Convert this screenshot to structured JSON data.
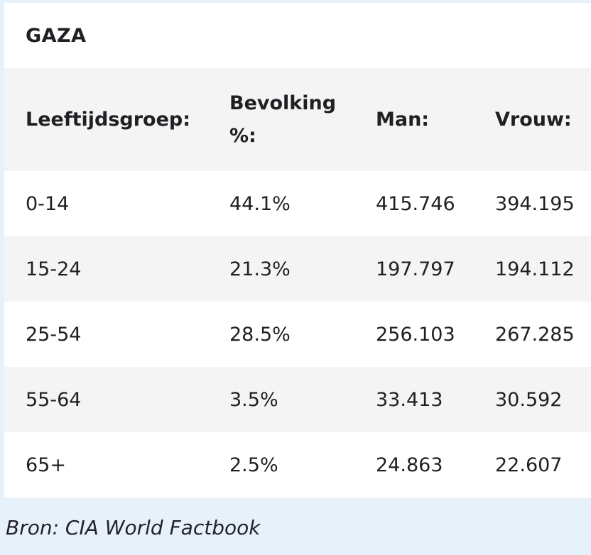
{
  "title": "GAZA",
  "table": {
    "headers": [
      "Leeftijdsgroep:",
      "Bevolking %:",
      "Man:",
      "Vrouw:"
    ],
    "rows": [
      [
        "0-14",
        "44.1%",
        "415.746",
        "394.195"
      ],
      [
        "15-24",
        "21.3%",
        "197.797",
        "194.112"
      ],
      [
        "25-54",
        "28.5%",
        "256.103",
        "267.285"
      ],
      [
        "55-64",
        "3.5%",
        "33.413",
        "30.592"
      ],
      [
        "65+",
        "2.5%",
        "24.863",
        "22.607"
      ]
    ]
  },
  "source": "Bron: CIA World Factbook",
  "colors": {
    "background": "#e6f1fa",
    "card": "#ffffff",
    "shaded_row": "#f4f4f4",
    "text": "#1f1f24"
  }
}
